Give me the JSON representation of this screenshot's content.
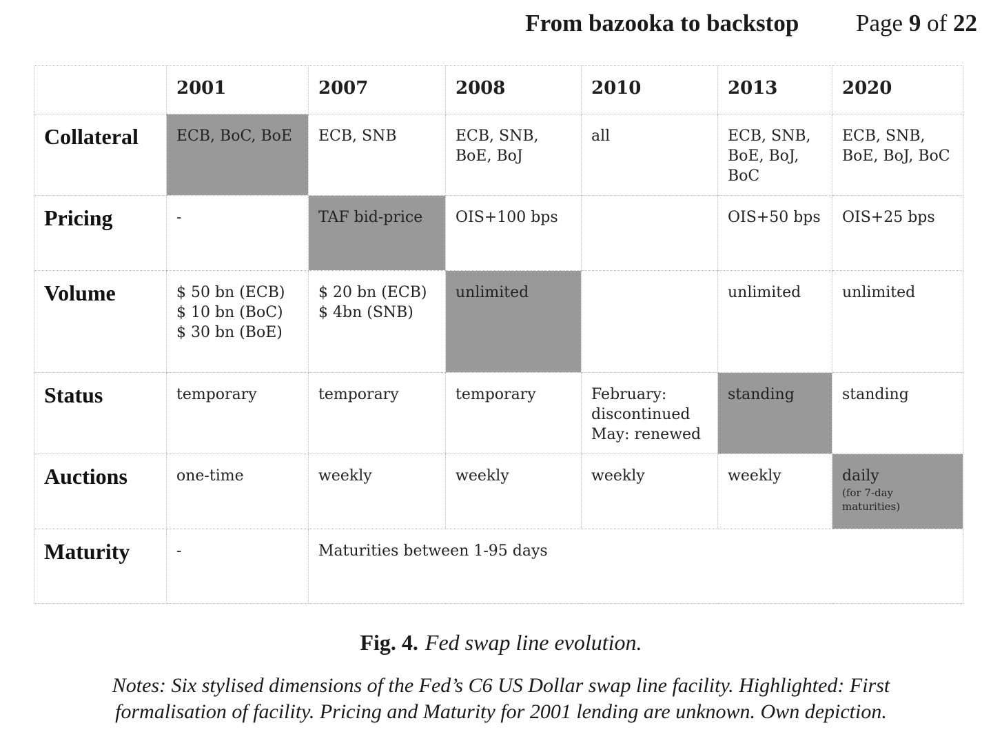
{
  "header": {
    "title": "From bazooka to backstop",
    "page_prefix": "Page",
    "page_number": "9",
    "page_of": "of",
    "page_total": "22"
  },
  "table": {
    "years": [
      "2001",
      "2007",
      "2008",
      "2010",
      "2013",
      "2020"
    ],
    "rows": [
      {
        "label": "Collateral",
        "cells": [
          {
            "lines": [
              "ECB, BoC, BoE"
            ],
            "highlight": true
          },
          {
            "lines": [
              "ECB, SNB"
            ]
          },
          {
            "lines": [
              "ECB, SNB,",
              "BoE, BoJ"
            ]
          },
          {
            "lines": [
              "all"
            ]
          },
          {
            "lines": [
              "ECB, SNB,",
              "BoE, BoJ,",
              "BoC"
            ]
          },
          {
            "lines": [
              "ECB, SNB,",
              "BoE, BoJ, BoC"
            ]
          }
        ]
      },
      {
        "label": "Pricing",
        "cells": [
          {
            "lines": [
              "-"
            ]
          },
          {
            "lines": [
              "TAF bid-price"
            ],
            "highlight": true
          },
          {
            "lines": [
              "OIS+100 bps"
            ]
          },
          {
            "lines": []
          },
          {
            "lines": [
              "OIS+50 bps"
            ]
          },
          {
            "lines": [
              "OIS+25 bps"
            ]
          }
        ]
      },
      {
        "label": "Volume",
        "cells": [
          {
            "lines": [
              "$ 50 bn (ECB)",
              "$ 10 bn (BoC)",
              "$ 30 bn (BoE)"
            ]
          },
          {
            "lines": [
              "$ 20 bn (ECB)",
              "$ 4bn (SNB)"
            ]
          },
          {
            "lines": [
              "unlimited"
            ],
            "highlight": true
          },
          {
            "lines": []
          },
          {
            "lines": [
              "unlimited"
            ]
          },
          {
            "lines": [
              "unlimited"
            ]
          }
        ]
      },
      {
        "label": "Status",
        "cells": [
          {
            "lines": [
              "temporary"
            ]
          },
          {
            "lines": [
              "temporary"
            ]
          },
          {
            "lines": [
              "temporary"
            ]
          },
          {
            "lines": [
              "February:",
              "discontinued",
              "May: renewed"
            ]
          },
          {
            "lines": [
              "standing"
            ],
            "highlight": true
          },
          {
            "lines": [
              "standing"
            ]
          }
        ]
      },
      {
        "label": "Auctions",
        "cells": [
          {
            "lines": [
              "one-time"
            ]
          },
          {
            "lines": [
              "weekly"
            ]
          },
          {
            "lines": [
              "weekly"
            ]
          },
          {
            "lines": [
              "weekly"
            ]
          },
          {
            "lines": [
              "weekly"
            ]
          },
          {
            "lines": [
              "daily"
            ],
            "small_lines": [
              "(for 7-day",
              "maturities)"
            ],
            "highlight": true
          }
        ]
      },
      {
        "label": "Maturity",
        "cells": [
          {
            "lines": [
              "-"
            ]
          },
          {
            "lines": [
              "Maturities between 1-95 days"
            ],
            "colspan": 5
          }
        ]
      }
    ]
  },
  "caption": {
    "fig_label": "Fig. 4.",
    "fig_title": "Fed swap line evolution."
  },
  "notes": {
    "line1": "Notes: Six stylised dimensions of the Fed’s C6 US Dollar swap line facility. Highlighted: First",
    "line2": "formalisation of facility. Pricing and Maturity for 2001 lending are unknown. Own depiction."
  },
  "colors": {
    "highlight": "#999999",
    "grid_line": "#b9b9b9"
  }
}
